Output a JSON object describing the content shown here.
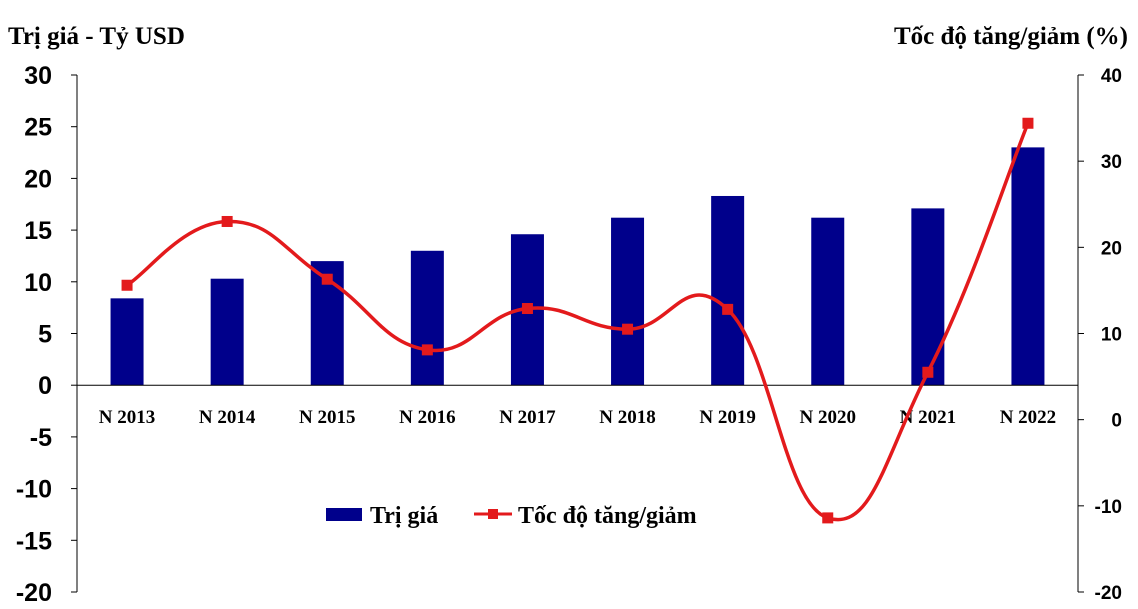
{
  "chart_data": {
    "type": "bar",
    "categories": [
      "N 2013",
      "N 2014",
      "N 2015",
      "N 2016",
      "N 2017",
      "N 2018",
      "N 2019",
      "N 2020",
      "N 2021",
      "N 2022"
    ],
    "series": [
      {
        "name": "Trị giá",
        "type": "bar",
        "axis": "left",
        "color": "#00008B",
        "values": [
          8.4,
          10.3,
          12.0,
          13.0,
          14.6,
          16.2,
          18.3,
          16.2,
          17.1,
          23.0
        ]
      },
      {
        "name": "Tốc độ tăng/giảm",
        "type": "line",
        "smooth": true,
        "marker": "square",
        "axis": "right",
        "color": "#E31A1C",
        "values": [
          15.6,
          23.0,
          16.3,
          8.1,
          12.9,
          10.5,
          12.8,
          -11.4,
          5.5,
          34.4
        ]
      }
    ],
    "ylabel_left": "Trị giá - Tỷ USD",
    "ylabel_right": "Tốc độ tăng/giảm (%)",
    "ylim_left": [
      -20,
      30
    ],
    "yticks_left": [
      "30",
      "25",
      "20",
      "15",
      "10",
      "5",
      "0",
      "-5",
      "-10",
      "-15",
      "-20"
    ],
    "ylim_right": [
      -20,
      40
    ],
    "yticks_right": [
      "40",
      "30",
      "20",
      "10",
      "0",
      "-10",
      "-20"
    ],
    "grid": false,
    "legend": {
      "placement": "bottom-left",
      "entries": [
        "Trị giá",
        "Tốc độ tăng/giảm"
      ]
    }
  }
}
